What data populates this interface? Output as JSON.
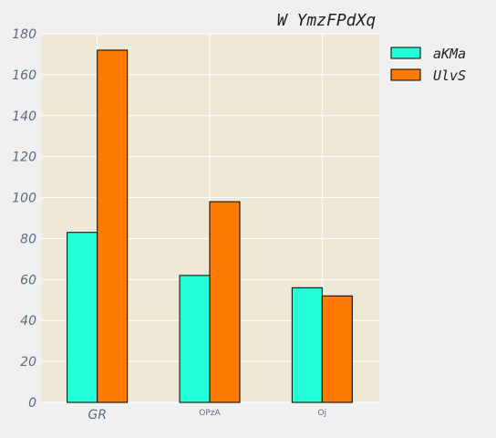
{
  "chart_data": {
    "type": "bar",
    "title": "W YmzFPdXq",
    "xlabel": "",
    "ylabel": "",
    "categories": [
      "GR",
      "OPzA",
      "Oj"
    ],
    "series": [
      {
        "name": "aKMa",
        "values": [
          83,
          62,
          56
        ],
        "color": "#22ffd9"
      },
      {
        "name": "UlvS",
        "values": [
          172,
          98,
          52
        ],
        "color": "#ff7a00"
      }
    ],
    "ylim": [
      0,
      180
    ],
    "yticks": [
      "0",
      "20",
      "40",
      "60",
      "80",
      "100",
      "120",
      "140",
      "160",
      "180"
    ],
    "grid": true,
    "legend_position": "right",
    "colors": {
      "plot_background": "#f0e8d6",
      "figure_background": "#f0f0f0",
      "grid": "#ffffff",
      "bar_edge": "#000000"
    }
  }
}
